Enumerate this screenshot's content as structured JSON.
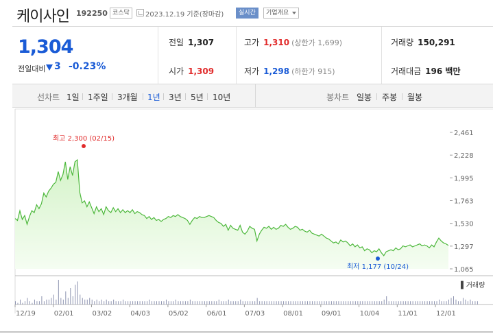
{
  "header": {
    "name": "케이사인",
    "code": "192250",
    "market": "코스닥",
    "date": "2023.12.19 기준(장마감)",
    "live_label": "실시간",
    "overview_label": "기업개요"
  },
  "price": {
    "current": "1,304",
    "change_label": "전일대비",
    "change": "3",
    "change_rate": "-0.23%"
  },
  "stats": {
    "prev_label": "전일",
    "prev": "1,307",
    "high_label": "고가",
    "high": "1,310",
    "upper_limit": "(상한가 1,699)",
    "volume_label": "거래량",
    "volume": "150,291",
    "open_label": "시가",
    "open": "1,309",
    "low_label": "저가",
    "low": "1,298",
    "lower_limit": "(하한가 915)",
    "amount_label": "거래대금",
    "amount": "196 백만"
  },
  "period_tabs": {
    "label": "선차트",
    "items": [
      "1일",
      "1주일",
      "3개월",
      "1년",
      "3년",
      "5년",
      "10년"
    ],
    "active": "1년"
  },
  "candle_tabs": {
    "label": "봉차트",
    "items": [
      "일봉",
      "주봉",
      "월봉"
    ]
  },
  "colors": {
    "price_line": "#4db83c",
    "area_fill_top": "#d4f3c8",
    "area_fill_bottom": "#f5fdf2",
    "high_marker": "#e12b2b",
    "low_marker": "#1a5bd6",
    "volume_bar": "#8e94b0"
  },
  "chart_data": {
    "type": "area",
    "ylim": [
      1065,
      2461
    ],
    "y_ticks": [
      "2,461",
      "2,228",
      "1,995",
      "1,763",
      "1,530",
      "1,297",
      "1,065"
    ],
    "x_ticks": [
      "12/19",
      "02/01",
      "03/02",
      "04/03",
      "05/02",
      "06/01",
      "07/03",
      "08/01",
      "09/01",
      "10/04",
      "11/01",
      "12/01"
    ],
    "high_annotation": "최고 2,300 (02/15)",
    "low_annotation": "최저 1,177 (10/24)",
    "volume_label": "거래량",
    "series": [
      {
        "values": [
          1580,
          1560,
          1660,
          1570,
          1610,
          1520,
          1600,
          1660,
          1640,
          1720,
          1680,
          1730,
          1840,
          1800,
          1860,
          1890,
          1930,
          1950,
          2060,
          1970,
          2030,
          2160,
          1980,
          2110,
          2020,
          2160,
          2180,
          1850,
          1740,
          1760,
          1700,
          1750,
          1690,
          1630,
          1700,
          1650,
          1680,
          1620,
          1700,
          1660,
          1640,
          1690,
          1650,
          1680,
          1640,
          1670,
          1640,
          1660,
          1640,
          1670,
          1630,
          1650,
          1640,
          1620,
          1610,
          1580,
          1600,
          1570,
          1590,
          1560,
          1570,
          1550,
          1570,
          1580,
          1600,
          1590,
          1610,
          1600,
          1620,
          1600,
          1590,
          1580,
          1560,
          1520,
          1560,
          1590,
          1580,
          1600,
          1590,
          1590,
          1600,
          1610,
          1600,
          1590,
          1560,
          1540,
          1530,
          1500,
          1520,
          1460,
          1510,
          1480,
          1470,
          1460,
          1510,
          1440,
          1420,
          1450,
          1500,
          1480,
          1470,
          1350,
          1420,
          1460,
          1490,
          1480,
          1500,
          1470,
          1490,
          1470,
          1480,
          1510,
          1500,
          1520,
          1490,
          1470,
          1480,
          1500,
          1490,
          1460,
          1470,
          1450,
          1440,
          1460,
          1430,
          1420,
          1410,
          1400,
          1420,
          1400,
          1380,
          1370,
          1350,
          1330,
          1340,
          1320,
          1360,
          1340,
          1350,
          1330,
          1300,
          1320,
          1290,
          1310,
          1280,
          1290,
          1250,
          1270,
          1260,
          1230,
          1250,
          1240,
          1270,
          1230,
          1200,
          1240,
          1250,
          1260,
          1250,
          1280,
          1260,
          1270,
          1300,
          1290,
          1300,
          1310,
          1290,
          1300,
          1310,
          1320,
          1300,
          1310,
          1300,
          1280,
          1310,
          1290,
          1340,
          1380,
          1350,
          1330,
          1320,
          1304
        ]
      }
    ],
    "volume": [
      2,
      1,
      3,
      1,
      2,
      4,
      2,
      1,
      3,
      2,
      2,
      5,
      2,
      3,
      3,
      4,
      6,
      3,
      15,
      4,
      3,
      8,
      4,
      10,
      5,
      12,
      14,
      6,
      4,
      3,
      3,
      4,
      3,
      2,
      3,
      2,
      3,
      2,
      3,
      2,
      2,
      3,
      2,
      2,
      2,
      3,
      2,
      2,
      2,
      2,
      2,
      2,
      2,
      2,
      2,
      2,
      3,
      2,
      2,
      2,
      2,
      2,
      2,
      3,
      2,
      2,
      2,
      3,
      2,
      2,
      2,
      2,
      2,
      3,
      2,
      2,
      2,
      2,
      2,
      2,
      2,
      2,
      2,
      2,
      2,
      3,
      2,
      2,
      2,
      3,
      2,
      2,
      2,
      2,
      3,
      2,
      2,
      2,
      2,
      2,
      2,
      4,
      2,
      2,
      2,
      2,
      2,
      2,
      2,
      2,
      2,
      2,
      2,
      2,
      2,
      2,
      2,
      2,
      2,
      2,
      2,
      2,
      2,
      2,
      2,
      2,
      2,
      2,
      2,
      2,
      2,
      2,
      2,
      2,
      2,
      2,
      2,
      2,
      2,
      2,
      2,
      2,
      2,
      2,
      2,
      2,
      2,
      2,
      2,
      2,
      2,
      2,
      2,
      2,
      3,
      5,
      2,
      2,
      2,
      2,
      2,
      2,
      2,
      2,
      2,
      2,
      2,
      2,
      2,
      2,
      2,
      2,
      2,
      2,
      2,
      2,
      2,
      3,
      2,
      2,
      2,
      3,
      4,
      5,
      3,
      2,
      2,
      4,
      3,
      2,
      3,
      2,
      2,
      2
    ]
  }
}
